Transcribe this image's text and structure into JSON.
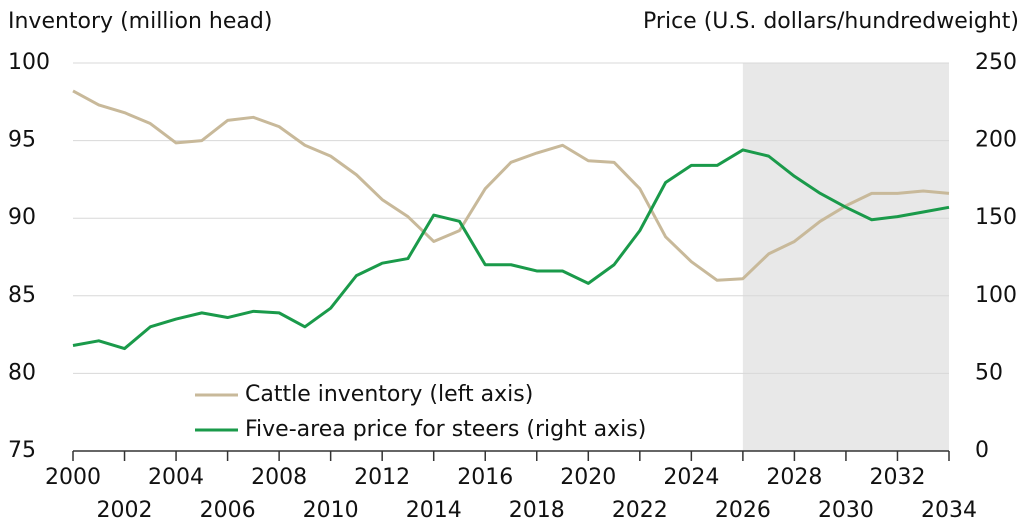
{
  "chart_data": {
    "type": "line",
    "ylabel": "Inventory (million head)",
    "y2label": "Price (U.S. dollars/hundredweight)",
    "x": [
      2000,
      2001,
      2002,
      2003,
      2004,
      2005,
      2006,
      2007,
      2008,
      2009,
      2010,
      2011,
      2012,
      2013,
      2014,
      2015,
      2016,
      2017,
      2018,
      2019,
      2020,
      2021,
      2022,
      2023,
      2024,
      2025,
      2026,
      2027,
      2028,
      2029,
      2030,
      2031,
      2032,
      2033,
      2034
    ],
    "series": [
      {
        "name": "Cattle inventory (left axis)",
        "color": "#c8b99a",
        "axis": "y",
        "values": [
          98.2,
          97.3,
          96.8,
          96.1,
          94.85,
          95.0,
          96.3,
          96.5,
          95.9,
          94.7,
          94.0,
          92.8,
          91.2,
          90.1,
          88.5,
          89.2,
          91.9,
          93.6,
          94.2,
          94.7,
          93.7,
          93.6,
          91.9,
          88.8,
          87.2,
          86.0,
          86.1,
          87.7,
          88.5,
          89.8,
          90.8,
          91.6,
          91.6,
          91.75,
          91.6
        ]
      },
      {
        "name": "Five-area price for steers (right axis)",
        "color": "#1a9a4a",
        "axis": "y2",
        "values": [
          68,
          71,
          66,
          80,
          85,
          89,
          86,
          90,
          89,
          80,
          92,
          113,
          121,
          124,
          152,
          148,
          120,
          120,
          116,
          116,
          108,
          120,
          142,
          173,
          184,
          184,
          194,
          190,
          177,
          166,
          157,
          149,
          151,
          154,
          157
        ]
      }
    ],
    "xlim": [
      2000,
      2034
    ],
    "xticks": [
      2000,
      2002,
      2004,
      2006,
      2008,
      2010,
      2012,
      2014,
      2016,
      2018,
      2020,
      2022,
      2024,
      2026,
      2028,
      2030,
      2032,
      2034
    ],
    "ylim": [
      75,
      100
    ],
    "yticks": [
      75,
      80,
      85,
      90,
      95,
      100
    ],
    "y2lim": [
      0,
      250
    ],
    "y2ticks": [
      0,
      50,
      100,
      150,
      200,
      250
    ],
    "shade": [
      2026,
      2034
    ],
    "shade_color": "#e8e8e8",
    "grid": true
  }
}
